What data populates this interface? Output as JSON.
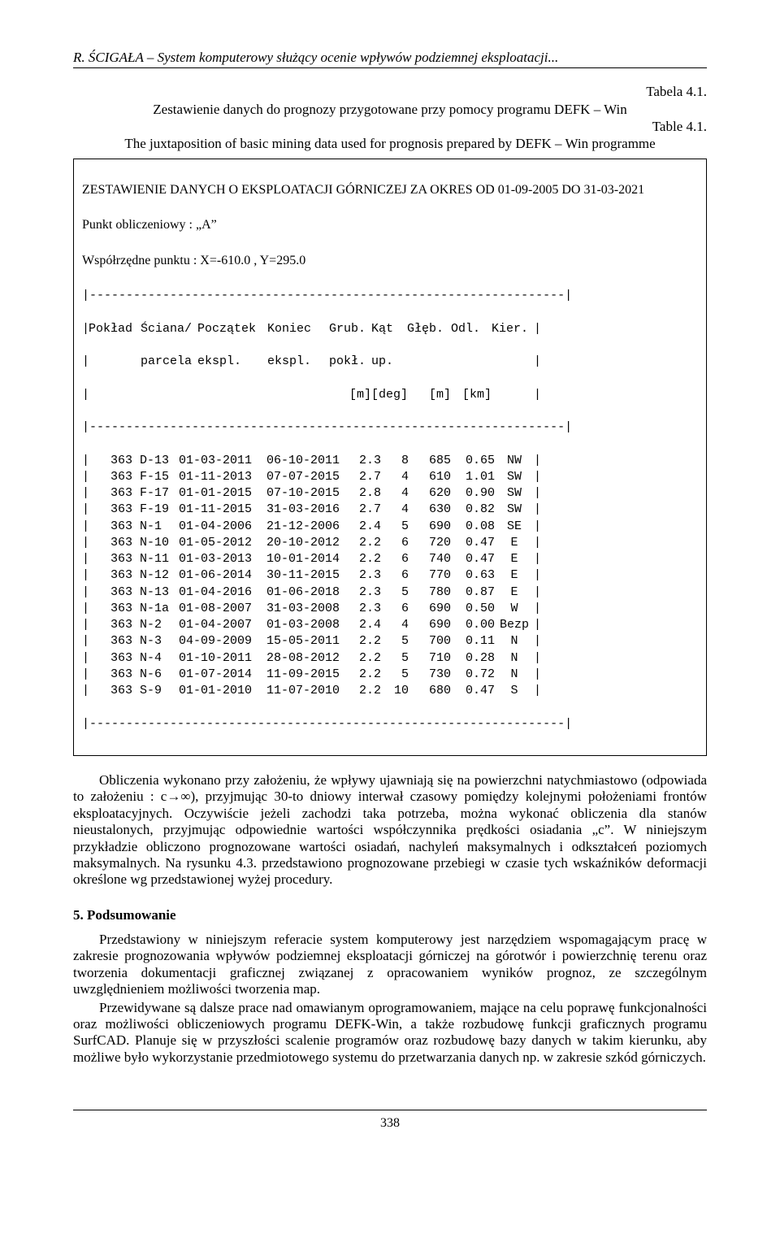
{
  "running_head": "R. ŚCIGAŁA – System komputerowy służący ocenie wpływów podziemnej eksploatacji...",
  "labels": {
    "tabela": "Tabela 4.1.",
    "caption_pl": "Zestawienie danych do prognozy przygotowane przy pomocy programu DEFK – Win",
    "table_en": "Table 4.1.",
    "caption_en": "The juxtaposition of basic mining data used for prognosis prepared by DEFK – Win programme"
  },
  "box": {
    "header1": "ZESTAWIENIE DANYCH O EKSPLOATACJI GÓRNICZEJ ZA OKRES OD 01-09-2005 DO 31-03-2021",
    "header2": "Punkt obliczeniowy  :  „A”",
    "header3": "Współrzędne punktu  :  X=-610.0 , Y=295.0",
    "dash": "|-----------------------------------------------------------------|",
    "cols1": [
      "|",
      "Pokład",
      "Ściana/",
      "Początek",
      "Koniec",
      "Grub.",
      "Kąt",
      "Głęb.",
      "Odl.",
      "Kier.",
      "|"
    ],
    "cols2": [
      "|",
      "",
      "parcela",
      "ekspl.",
      "ekspl.",
      "pokł.",
      "up.",
      "",
      "",
      "",
      "|"
    ],
    "cols3": [
      "|",
      "",
      "",
      "",
      "",
      "[m]",
      "[deg]",
      "[m]",
      "[km]",
      "",
      "|"
    ],
    "rows": [
      [
        "363",
        "D-13",
        "01-03-2011",
        "06-10-2011",
        "2.3",
        "8",
        "685",
        "0.65",
        "NW"
      ],
      [
        "363",
        "F-15",
        "01-11-2013",
        "07-07-2015",
        "2.7",
        "4",
        "610",
        "1.01",
        "SW"
      ],
      [
        "363",
        "F-17",
        "01-01-2015",
        "07-10-2015",
        "2.8",
        "4",
        "620",
        "0.90",
        "SW"
      ],
      [
        "363",
        "F-19",
        "01-11-2015",
        "31-03-2016",
        "2.7",
        "4",
        "630",
        "0.82",
        "SW"
      ],
      [
        "363",
        "N-1",
        "01-04-2006",
        "21-12-2006",
        "2.4",
        "5",
        "690",
        "0.08",
        "SE"
      ],
      [
        "363",
        "N-10",
        "01-05-2012",
        "20-10-2012",
        "2.2",
        "6",
        "720",
        "0.47",
        "E"
      ],
      [
        "363",
        "N-11",
        "01-03-2013",
        "10-01-2014",
        "2.2",
        "6",
        "740",
        "0.47",
        "E"
      ],
      [
        "363",
        "N-12",
        "01-06-2014",
        "30-11-2015",
        "2.3",
        "6",
        "770",
        "0.63",
        "E"
      ],
      [
        "363",
        "N-13",
        "01-04-2016",
        "01-06-2018",
        "2.3",
        "5",
        "780",
        "0.87",
        "E"
      ],
      [
        "363",
        "N-1a",
        "01-08-2007",
        "31-03-2008",
        "2.3",
        "6",
        "690",
        "0.50",
        "W"
      ],
      [
        "363",
        "N-2",
        "01-04-2007",
        "01-03-2008",
        "2.4",
        "4",
        "690",
        "0.00",
        "Bezp"
      ],
      [
        "363",
        "N-3",
        "04-09-2009",
        "15-05-2011",
        "2.2",
        "5",
        "700",
        "0.11",
        "N"
      ],
      [
        "363",
        "N-4",
        "01-10-2011",
        "28-08-2012",
        "2.2",
        "5",
        "710",
        "0.28",
        "N"
      ],
      [
        "363",
        "N-6",
        "01-07-2014",
        "11-09-2015",
        "2.2",
        "5",
        "730",
        "0.72",
        "N"
      ],
      [
        "363",
        "S-9",
        "01-01-2010",
        "11-07-2010",
        "2.2",
        "10",
        "680",
        "0.47",
        "S"
      ]
    ]
  },
  "para1": "Obliczenia wykonano przy założeniu, że wpływy ujawniają się na powierzchni natychmiastowo (odpowiada to założeniu : c→∞), przyjmując 30-to dniowy interwał czasowy pomiędzy kolejnymi położeniami frontów eksploatacyjnych. Oczywiście jeżeli zachodzi taka potrzeba, można wykonać obliczenia dla stanów nieustalonych, przyjmując odpowiednie wartości współczynnika prędkości osiadania „c”. W niniejszym przykładzie obliczono prognozowane wartości osiadań, nachyleń maksymalnych i odkształceń poziomych maksymalnych. Na rysunku 4.3. przedstawiono prognozowane przebiegi w czasie tych wskaźników deformacji określone wg przedstawionej wyżej procedury.",
  "section5": "5. Podsumowanie",
  "para2": "Przedstawiony w niniejszym referacie system komputerowy jest narzędziem wspomagającym pracę w zakresie prognozowania wpływów podziemnej eksploatacji górniczej na górotwór i powierzchnię terenu oraz tworzenia dokumentacji graficznej związanej z opracowaniem wyników prognoz, ze szczególnym uwzględnieniem możliwości tworzenia map.",
  "para3": "Przewidywane są dalsze prace nad omawianym oprogramowaniem, mające na celu poprawę funkcjonalności oraz możliwości obliczeniowych programu DEFK-Win, a także rozbudowę funkcji graficznych programu SurfCAD. Planuje się w przyszłości scalenie programów oraz rozbudowę bazy danych w takim kierunku, aby możliwe było wykorzystanie przedmiotowego systemu do przetwarzania danych np. w zakresie szkód górniczych.",
  "pagenum": "338"
}
